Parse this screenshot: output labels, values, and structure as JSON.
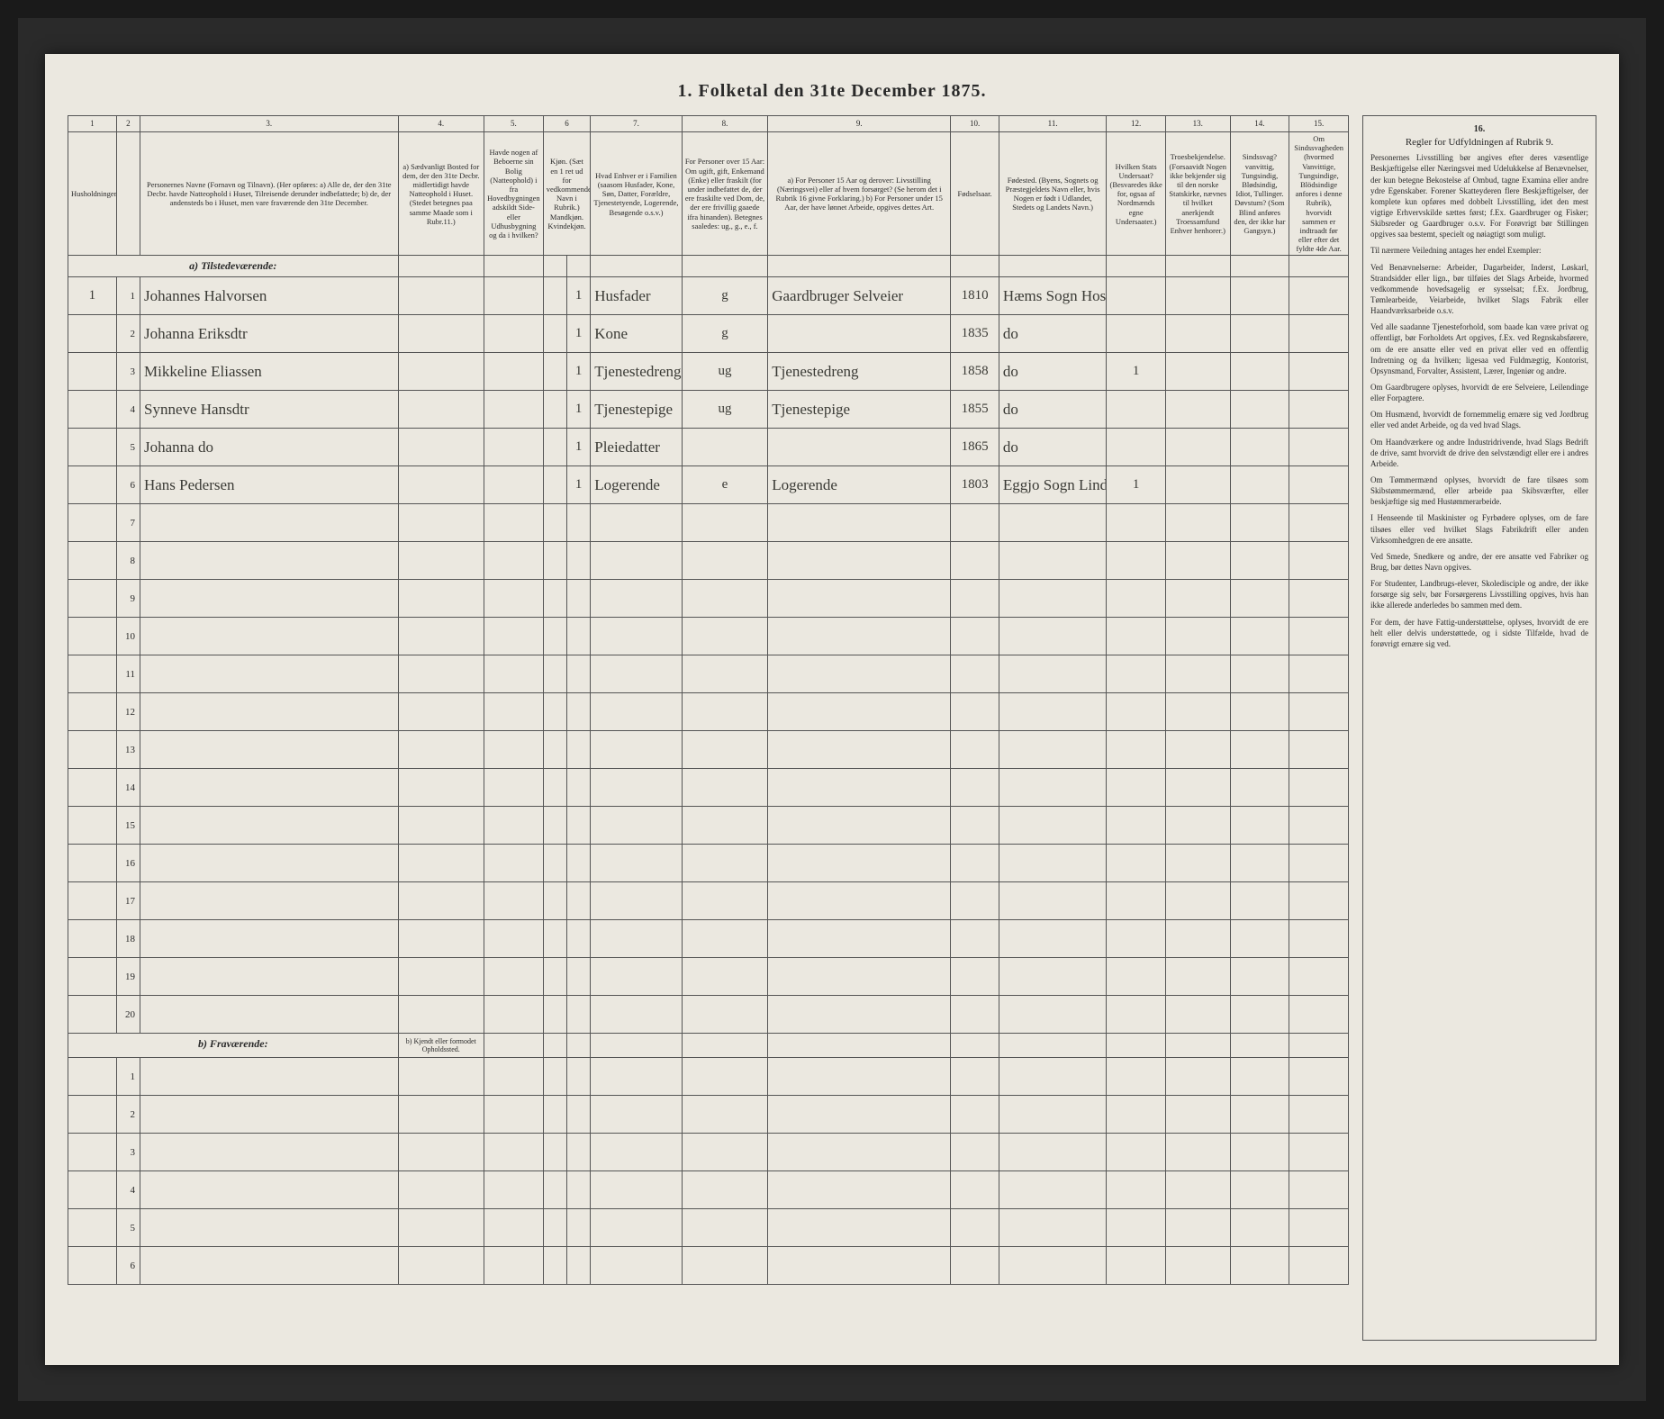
{
  "title": "1. Folketal den 31te December 1875.",
  "columns": {
    "nums": [
      "1",
      "2",
      "3.",
      "4.",
      "5.",
      "6",
      "7.",
      "8.",
      "9.",
      "10.",
      "11.",
      "12.",
      "13.",
      "14.",
      "15.",
      "16."
    ],
    "heads": [
      "Husholdninger.",
      "",
      "Personernes Navne (Fornavn og Tilnavn).\n(Her opføres:\na) Alle de, der den 31te Decbr. havde Natteophold i Huset, Tilreisende derunder indbefattede;\nb) de, der andensteds bo i Huset, men vare fraværende den 31te December.",
      "a) Sædvanligt Bosted for dem, der den 31te Decbr. midlertidigt havde Natteophold i Huset. (Stedet betegnes paa samme Maade som i Rubr.11.)",
      "Havde nogen af Beboerne sin Bolig (Natteophold) i fra Hovedbygningen adskildt Side- eller Udhusbygning og da i hvilken?",
      "Kjøn. (Sæt en 1 ret ud for vedkommende Navn i Rubrik.) Mandkjøn. Kvindekjøn.",
      "Hvad Enhver er i Familien (saasom Husfader, Kone, Søn, Datter, Forældre, Tjenestetyende, Logerende, Besøgende o.s.v.)",
      "For Personer over 15 Aar: Om ugift, gift, Enkemand (Enke) eller fraskilt (for under indbefattet de, der ere fraskilte ved Dom, de, der ere frivillig gaaede ifra hinanden). Betegnes saaledes: ug., g., e., f.",
      "a) For Personer 15 Aar og derover: Livsstilling (Næringsvei) eller af hvem forsørget? (Se herom det i Rubrik 16 givne Forklaring.)\nb) For Personer under 15 Aar, der have lønnet Arbeide, opgives dettes Art.",
      "Fødselsaar.",
      "Fødested.\n(Byens, Sognets og Præstegjeldets Navn eller, hvis Nogen er født i Udlandet, Stedets og Landets Navn.)",
      "Hvilken Stats Undersaat? (Besvaredes ikke for, ogsaa af Nordmænds egne Undersaater.)",
      "Troesbekjendelse. (Forsaavidt Nogen ikke bekjender sig til den norske Statskirke, nævnes til hvilket anerkjendt Troessamfund Enhver henhorer.)",
      "Sindssvag? vanvittig, Tungsindig, Blødsindig, Idiot, Tullinger. Døvstum? (Som Blind anføres den, der ikke har Gangsyn.)",
      "Om Sindssvagheden (hvormed Vanvittige, Tungsindige, Blödsindige anfores i denne Rubrik), hvorvidt sammen er indtraadt før eller efter det fyldte 4de Aar.",
      "Regler for Udfyldningen af Rubrik 9."
    ]
  },
  "sections": {
    "present": "a) Tilstedeværende:",
    "absent": "b) Fraværende:",
    "absent_col4": "b) Kjendt eller formodet Opholdssted."
  },
  "rows": [
    {
      "n": "1",
      "p": "1",
      "name": "Johannes Halvorsen",
      "c5": "",
      "c6": "1",
      "c7": "Husfader",
      "c8": "g",
      "c9": "Gaardbruger Selveier",
      "c10": "1810",
      "c11": "Hæms Sogn Hosanger P.",
      "c12": ""
    },
    {
      "n": "",
      "p": "2",
      "name": "Johanna Eriksdtr",
      "c5": "",
      "c6": "1",
      "c7": "Kone",
      "c8": "g",
      "c9": "",
      "c10": "1835",
      "c11": "do",
      "c12": ""
    },
    {
      "n": "",
      "p": "3",
      "name": "Mikkeline Eliassen",
      "c5": "",
      "c6": "1",
      "c7": "Tjenestedreng",
      "c8": "ug",
      "c9": "Tjenestedreng",
      "c10": "1858",
      "c11": "do",
      "c12": "1"
    },
    {
      "n": "",
      "p": "4",
      "name": "Synneve Hansdtr",
      "c5": "",
      "c6": "1",
      "c7": "Tjenestepige",
      "c8": "ug",
      "c9": "Tjenestepige",
      "c10": "1855",
      "c11": "do",
      "c12": ""
    },
    {
      "n": "",
      "p": "5",
      "name": "Johanna do",
      "c5": "",
      "c6": "1",
      "c7": "Pleiedatter",
      "c8": "",
      "c9": "",
      "c10": "1865",
      "c11": "do",
      "c12": ""
    },
    {
      "n": "",
      "p": "6",
      "name": "Hans Pedersen",
      "c5": "",
      "c6": "1",
      "c7": "Logerende",
      "c8": "e",
      "c9": "Logerende",
      "c10": "1803",
      "c11": "Eggjo Sogn Lindaas P.",
      "c12": "1"
    }
  ],
  "emptyPresent": [
    "7",
    "8",
    "9",
    "10",
    "11",
    "12",
    "13",
    "14",
    "15",
    "16",
    "17",
    "18",
    "19",
    "20"
  ],
  "emptyAbsent": [
    "1",
    "2",
    "3",
    "4",
    "5",
    "6"
  ],
  "rules": [
    "Personernes Livsstilling bør angives efter deres væsentlige Beskjæftigelse eller Næringsvei med Udelukkelse af Benævnelser, der kun betegne Bekostelse af Ombud, tagne Examina eller andre ydre Egenskaber. Forener Skatteyderen flere Beskjæftigelser, der komplete kun opføres med dobbelt Livsstilling, idet den mest vigtige Erhvervskilde sættes først; f.Ex. Gaardbruger og Fisker; Skibsreder og Gaardbruger o.s.v. For Forøvrigt bør Stillingen opgives saa bestemt, specielt og nøiagtigt som muligt.",
    "Til nærmere Veiledning antages her endel Exempler:",
    "Ved Benævnelserne: Arbeider, Dagarbeider, Inderst, Løskarl, Strandsidder eller lign., bør tilføies det Slags Arbeide, hvormed vedkommende hovedsagelig er sysselsat; f.Ex. Jordbrug, Tømlearbeide, Veiarbeide, hvilket Slags Fabrik eller Haandværksarbeide o.s.v.",
    "Ved alle saadanne Tjenesteforhold, som baade kan være privat og offentligt, bør Forholdets Art opgives, f.Ex. ved Regnskabsførere, om de ere ansatte eller ved en privat eller ved en offentlig Indretning og da hvilken; ligesaa ved Fuldmægtig, Kontorist, Opsynsmand, Forvalter, Assistent, Lærer, Ingeniør og andre.",
    "Om Gaardbrugere oplyses, hvorvidt de ere Selveiere, Leilendinge eller Forpagtere.",
    "Om Husmænd, hvorvidt de fornemmelig ernære sig ved Jordbrug eller ved andet Arbeide, og da ved hvad Slags.",
    "Om Haandværkere og andre Industridrivende, hvad Slags Bedrift de drive, samt hvorvidt de drive den selvstændigt eller ere i andres Arbeide.",
    "Om Tømmermænd oplyses, hvorvidt de fare tilsøes som Skibstømmermænd, eller arbeide paa Skibsværfter, eller beskjæftige sig med Hustømmerarbeide.",
    "I Henseende til Maskinister og Fyrbødere oplyses, om de fare tilsøes eller ved hvilket Slags Fabrikdrift eller anden Virksomhedgren de ere ansatte.",
    "Ved Smede, Snedkere og andre, der ere ansatte ved Fabriker og Brug, bør dettes Navn opgives.",
    "For Studenter, Landbrugs-elever, Skoledisciple og andre, der ikke forsørge sig selv, bør Forsørgerens Livsstilling opgives, hvis han ikke allerede anderledes bo sammen med dem.",
    "For dem, der have Fattig-understøttelse, oplyses, hvorvidt de ere helt eller delvis understøttede, og i sidste Tilfælde, hvad de forøvrigt ernære sig ved."
  ],
  "colors": {
    "bg": "#1a1a1a",
    "paper": "#ebe8e0",
    "ink": "#2a2a2a",
    "hand": "#3a3a35",
    "border": "#555555"
  }
}
